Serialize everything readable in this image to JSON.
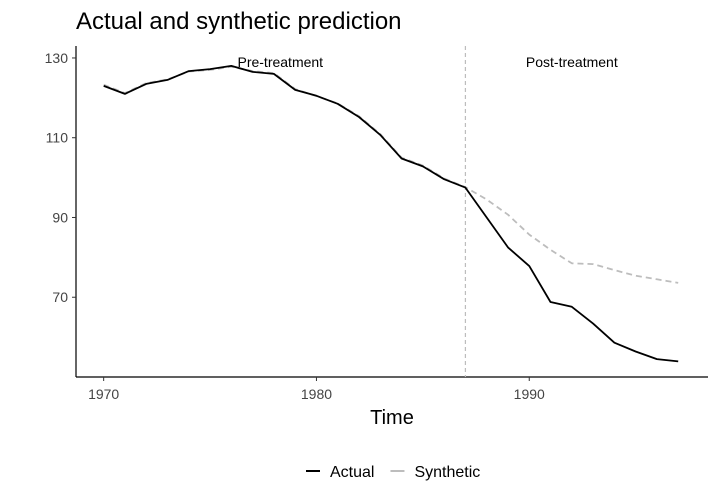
{
  "chart_data": {
    "type": "line",
    "title": "Actual and synthetic prediction",
    "xlabel": "Time",
    "ylabel": "",
    "xlim": [
      1968.7,
      1998.4
    ],
    "ylim": [
      50,
      133
    ],
    "xticks": [
      1970,
      1980,
      1990
    ],
    "yticks": [
      70,
      90,
      110,
      130
    ],
    "grid": false,
    "treatment_year": 1987,
    "annotations": [
      {
        "text": "Pre-treatment",
        "x": 1978.3,
        "y": 129
      },
      {
        "text": "Post-treatment",
        "x": 1992.0,
        "y": 129
      }
    ],
    "legend_position": "bottom",
    "series": [
      {
        "name": "Actual",
        "color": "#000000",
        "style": "solid",
        "x": [
          1970,
          1971,
          1972,
          1973,
          1974,
          1975,
          1976,
          1977,
          1978,
          1979,
          1980,
          1981,
          1982,
          1983,
          1984,
          1985,
          1986,
          1987,
          1988,
          1989,
          1990,
          1991,
          1992,
          1993,
          1994,
          1995,
          1996,
          1997
        ],
        "values": [
          123.0,
          121.0,
          123.5,
          124.5,
          126.7,
          127.2,
          128.0,
          126.5,
          126.0,
          122.0,
          120.5,
          118.5,
          115.2,
          110.7,
          104.8,
          102.8,
          99.6,
          97.5,
          90.0,
          82.5,
          77.8,
          68.8,
          67.6,
          63.4,
          58.6,
          56.4,
          54.5,
          53.9
        ]
      },
      {
        "name": "Synthetic",
        "color": "#bdbdbd",
        "style": "dashed",
        "x": [
          1970,
          1971,
          1972,
          1973,
          1974,
          1975,
          1976,
          1977,
          1978,
          1979,
          1980,
          1981,
          1982,
          1983,
          1984,
          1985,
          1986,
          1987,
          1988,
          1989,
          1990,
          1991,
          1992,
          1993,
          1994,
          1995,
          1996,
          1997
        ],
        "values": [
          123.3,
          121.2,
          123.7,
          124.6,
          126.6,
          127.0,
          127.8,
          126.7,
          126.2,
          122.2,
          120.4,
          118.6,
          115.4,
          110.9,
          105.0,
          103.0,
          99.8,
          97.6,
          94.5,
          90.7,
          85.7,
          81.9,
          78.5,
          78.3,
          76.8,
          75.4,
          74.5,
          73.6
        ]
      }
    ]
  }
}
